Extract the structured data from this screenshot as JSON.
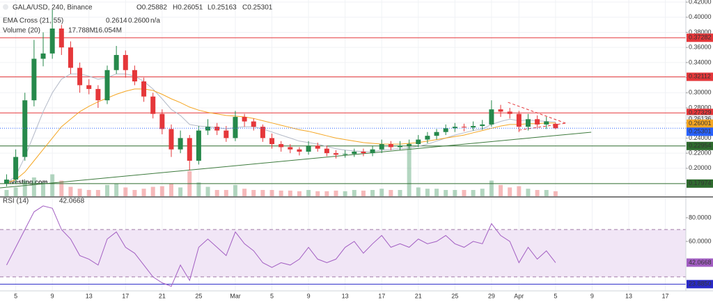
{
  "chart_data": [
    {
      "type": "candlestick",
      "title": "GALA/USD, 240, Binance",
      "ohlc_legend": [
        "O0.25882",
        "H0.26051",
        "L0.25163",
        "C0.25301"
      ],
      "indicators": [
        {
          "name": "EMA Cross (21, 55)",
          "values": [
            "0.2614",
            "0.2600",
            "n/a"
          ],
          "colors": [
            "#9aa3b5",
            "#f5a623",
            "#2962ff"
          ]
        },
        {
          "name": "Volume (20)",
          "values": [
            "17.788M",
            "16.054M"
          ],
          "colors": [
            "#e5373a",
            "#333333"
          ]
        }
      ],
      "watermark": "Investing.com",
      "x": [
        3,
        4,
        5,
        6,
        7,
        8,
        9,
        10,
        11,
        12,
        13,
        14,
        15,
        16,
        17,
        18,
        19,
        20,
        21,
        22,
        23,
        24,
        25,
        26,
        27,
        28,
        29,
        30,
        31,
        32,
        33,
        34,
        35,
        36,
        37,
        38,
        39,
        40,
        41,
        42,
        43,
        44,
        45,
        46,
        47,
        48,
        49,
        50,
        51,
        52,
        53,
        54,
        55,
        56,
        57,
        58,
        59,
        60,
        61,
        62,
        63
      ],
      "open": [
        0.18,
        0.185,
        0.215,
        0.29,
        0.345,
        0.352,
        0.385,
        0.36,
        0.333,
        0.31,
        0.305,
        0.29,
        0.33,
        0.35,
        0.33,
        0.315,
        0.295,
        0.272,
        0.252,
        0.225,
        0.24,
        0.21,
        0.25,
        0.255,
        0.25,
        0.24,
        0.268,
        0.262,
        0.255,
        0.24,
        0.232,
        0.228,
        0.225,
        0.222,
        0.23,
        0.226,
        0.22,
        0.218,
        0.219,
        0.222,
        0.22,
        0.225,
        0.232,
        0.228,
        0.23,
        0.232,
        0.238,
        0.243,
        0.248,
        0.253,
        0.255,
        0.254,
        0.256,
        0.258,
        0.278,
        0.275,
        0.272,
        0.255,
        0.265,
        0.258,
        0.25882
      ],
      "high": [
        0.192,
        0.225,
        0.3,
        0.37,
        0.38,
        0.41,
        0.39,
        0.368,
        0.34,
        0.318,
        0.31,
        0.336,
        0.362,
        0.356,
        0.336,
        0.32,
        0.3,
        0.278,
        0.258,
        0.25,
        0.244,
        0.256,
        0.265,
        0.26,
        0.256,
        0.276,
        0.272,
        0.266,
        0.258,
        0.246,
        0.236,
        0.232,
        0.228,
        0.236,
        0.234,
        0.23,
        0.224,
        0.224,
        0.226,
        0.226,
        0.23,
        0.238,
        0.236,
        0.236,
        0.238,
        0.244,
        0.248,
        0.252,
        0.258,
        0.26,
        0.259,
        0.262,
        0.264,
        0.29,
        0.284,
        0.28,
        0.276,
        0.272,
        0.27,
        0.268,
        0.26051
      ],
      "low": [
        0.176,
        0.18,
        0.21,
        0.282,
        0.335,
        0.345,
        0.35,
        0.325,
        0.3,
        0.298,
        0.28,
        0.285,
        0.325,
        0.32,
        0.31,
        0.288,
        0.266,
        0.245,
        0.215,
        0.22,
        0.197,
        0.205,
        0.244,
        0.244,
        0.235,
        0.236,
        0.255,
        0.25,
        0.235,
        0.226,
        0.222,
        0.22,
        0.217,
        0.218,
        0.222,
        0.216,
        0.213,
        0.214,
        0.215,
        0.216,
        0.216,
        0.22,
        0.224,
        0.224,
        0.226,
        0.228,
        0.233,
        0.238,
        0.244,
        0.248,
        0.249,
        0.25,
        0.251,
        0.255,
        0.268,
        0.266,
        0.248,
        0.25,
        0.252,
        0.252,
        0.25163
      ],
      "close": [
        0.185,
        0.215,
        0.29,
        0.345,
        0.352,
        0.385,
        0.36,
        0.333,
        0.31,
        0.305,
        0.29,
        0.33,
        0.35,
        0.33,
        0.315,
        0.295,
        0.272,
        0.252,
        0.225,
        0.24,
        0.21,
        0.25,
        0.255,
        0.25,
        0.24,
        0.268,
        0.262,
        0.255,
        0.24,
        0.232,
        0.228,
        0.225,
        0.222,
        0.23,
        0.226,
        0.22,
        0.218,
        0.219,
        0.222,
        0.22,
        0.225,
        0.232,
        0.228,
        0.23,
        0.232,
        0.238,
        0.243,
        0.248,
        0.253,
        0.255,
        0.254,
        0.256,
        0.258,
        0.278,
        0.275,
        0.272,
        0.255,
        0.265,
        0.258,
        0.262,
        0.25301
      ],
      "up_color": "#26894b",
      "down_color": "#e5373a",
      "series": [
        {
          "color": "#b4bac8",
          "values": [
            0.18,
            0.19,
            0.215,
            0.245,
            0.275,
            0.3,
            0.318,
            0.325,
            0.325,
            0.322,
            0.318,
            0.32,
            0.325,
            0.325,
            0.322,
            0.315,
            0.305,
            0.292,
            0.278,
            0.27,
            0.258,
            0.256,
            0.255,
            0.254,
            0.252,
            0.254,
            0.255,
            0.255,
            0.252,
            0.248,
            0.244,
            0.24,
            0.236,
            0.234,
            0.232,
            0.229,
            0.226,
            0.224,
            0.223,
            0.222,
            0.222,
            0.224,
            0.225,
            0.226,
            0.227,
            0.229,
            0.232,
            0.236,
            0.24,
            0.244,
            0.247,
            0.25,
            0.252,
            0.258,
            0.262,
            0.265,
            0.263,
            0.264,
            0.263,
            0.262,
            0.2614
          ]
        },
        {
          "color": "#f5a623",
          "values": [
            0.18,
            0.185,
            0.195,
            0.21,
            0.225,
            0.24,
            0.255,
            0.265,
            0.275,
            0.282,
            0.288,
            0.293,
            0.298,
            0.302,
            0.305,
            0.305,
            0.303,
            0.298,
            0.292,
            0.287,
            0.281,
            0.277,
            0.274,
            0.272,
            0.27,
            0.269,
            0.268,
            0.266,
            0.263,
            0.26,
            0.257,
            0.254,
            0.251,
            0.249,
            0.246,
            0.243,
            0.24,
            0.238,
            0.236,
            0.234,
            0.233,
            0.232,
            0.232,
            0.232,
            0.233,
            0.234,
            0.236,
            0.238,
            0.24,
            0.242,
            0.244,
            0.247,
            0.25,
            0.253,
            0.256,
            0.258,
            0.258,
            0.259,
            0.259,
            0.26,
            0.26
          ]
        }
      ],
      "volume": [
        10,
        14,
        25,
        30,
        22,
        35,
        25,
        15,
        12,
        10,
        10,
        18,
        20,
        14,
        10,
        12,
        15,
        16,
        20,
        14,
        40,
        22,
        15,
        10,
        10,
        18,
        12,
        10,
        10,
        10,
        9,
        9,
        8,
        10,
        8,
        8,
        9,
        8,
        10,
        9,
        10,
        12,
        10,
        10,
        85,
        14,
        12,
        12,
        10,
        10,
        10,
        10,
        12,
        25,
        18,
        14,
        16,
        12,
        10,
        10,
        8
      ],
      "volume_lim": [
        0,
        100
      ],
      "levels": [
        {
          "value": 0.37282,
          "color": "#e5373a"
        },
        {
          "value": 0.32112,
          "color": "#e5373a"
        },
        {
          "value": 0.27329,
          "color": "#e5373a"
        },
        {
          "value": 0.22954,
          "color": "#2e6b2e"
        },
        {
          "value": 0.17974,
          "color": "#2e6b2e"
        }
      ],
      "price_markers": [
        {
          "value": 0.26136,
          "color": "#e8eaed",
          "text_color": "#26894b"
        },
        {
          "value": 0.26001,
          "color": "#f5a623",
          "text_color": "#ffffff"
        },
        {
          "value": 0.25301,
          "color": "#2962ff",
          "text_color": "#ffffff"
        }
      ],
      "trend_lines": [
        {
          "color": "#3d7a3d",
          "dashed": false,
          "x": [
            2.28,
            66.9
          ],
          "y": [
            0.174,
            0.2478
          ]
        },
        {
          "color": "#e5373a",
          "dashed": true,
          "x": [
            57.8,
            64.1
          ],
          "y": [
            0.2873,
            0.2597
          ]
        },
        {
          "color": "#e5373a",
          "dashed": true,
          "x": [
            59.0,
            64.1
          ],
          "y": [
            0.2505,
            0.2597
          ]
        }
      ],
      "xlim": [
        2.28,
        77.24
      ],
      "xticks": [
        {
          "value": 4,
          "label": "5"
        },
        {
          "value": 8,
          "label": "9"
        },
        {
          "value": 12,
          "label": "13"
        },
        {
          "value": 16,
          "label": "17"
        },
        {
          "value": 20,
          "label": "21"
        },
        {
          "value": 24,
          "label": "25"
        },
        {
          "value": 28,
          "label": "Mar"
        },
        {
          "value": 32,
          "label": "5"
        },
        {
          "value": 36,
          "label": "9"
        },
        {
          "value": 40,
          "label": "13"
        },
        {
          "value": 44,
          "label": "17"
        },
        {
          "value": 48,
          "label": "21"
        },
        {
          "value": 52,
          "label": "25"
        },
        {
          "value": 56,
          "label": "29"
        },
        {
          "value": 59,
          "label": "Apr"
        },
        {
          "value": 63,
          "label": "5"
        },
        {
          "value": 67,
          "label": "9"
        },
        {
          "value": 71,
          "label": "13"
        },
        {
          "value": 75,
          "label": "17"
        }
      ],
      "ylim": [
        0.163,
        0.4228
      ],
      "yticks": [
        {
          "value": 0.2,
          "label": "0.20000"
        },
        {
          "value": 0.22,
          "label": "0.22000"
        },
        {
          "value": 0.24,
          "label": "0.24000"
        },
        {
          "value": 0.26,
          "label": "0.26000"
        },
        {
          "value": 0.28,
          "label": "0.28000"
        },
        {
          "value": 0.3,
          "label": "0.30000"
        },
        {
          "value": 0.32,
          "label": "0.32000"
        },
        {
          "value": 0.34,
          "label": "0.34000"
        },
        {
          "value": 0.36,
          "label": "0.36000"
        },
        {
          "value": 0.38,
          "label": "0.38000"
        },
        {
          "value": 0.4,
          "label": "0.40000"
        },
        {
          "value": 0.42,
          "label": "0.42000"
        }
      ],
      "grid": true
    },
    {
      "type": "line",
      "title": "RSI (14)",
      "last": 42.0668,
      "color": "#a25ec2",
      "band_fill": "#f1e6f6",
      "bands": [
        70,
        30
      ],
      "reference": {
        "value": 23.885,
        "label": "23.8850",
        "color": "#2929c8"
      },
      "values": [
        40,
        55,
        70,
        85,
        90,
        88,
        70,
        62,
        48,
        45,
        40,
        62,
        68,
        55,
        50,
        40,
        30,
        25,
        22,
        40,
        27,
        55,
        62,
        55,
        48,
        68,
        58,
        52,
        42,
        38,
        42,
        40,
        45,
        55,
        45,
        42,
        45,
        55,
        60,
        50,
        58,
        65,
        55,
        58,
        55,
        62,
        58,
        60,
        65,
        58,
        55,
        60,
        58,
        75,
        65,
        60,
        42,
        55,
        45,
        52,
        42.0668
      ],
      "ylim": [
        18.2,
        97
      ],
      "yticks": [
        {
          "value": 60,
          "label": "60.0000"
        },
        {
          "value": 80,
          "label": "80.0000"
        }
      ]
    }
  ]
}
